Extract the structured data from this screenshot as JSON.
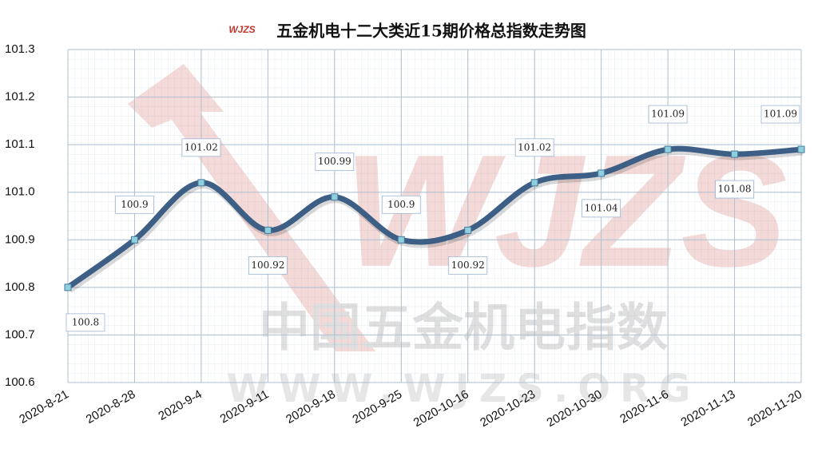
{
  "chart_data": {
    "type": "line",
    "title": "五金机电十二大类近15期价格总指数走势图",
    "logo": "WJZS",
    "watermark": [
      "中国五金机电指数",
      "WWW.WJZS.ORG"
    ],
    "categories": [
      "2020-8-21",
      "2020-8-28",
      "2020-9-4",
      "2020-9-11",
      "2020-9-18",
      "2020-9-25",
      "2020-10-16",
      "2020-10-23",
      "2020-10-30",
      "2020-11-6",
      "2020-11-13",
      "2020-11-20"
    ],
    "series": [
      {
        "name": "价格总指数",
        "color": "#3d5f86",
        "values": [
          100.8,
          100.9,
          101.02,
          100.92,
          100.99,
          100.9,
          100.92,
          101.02,
          101.04,
          101.09,
          101.08,
          101.09
        ]
      }
    ],
    "ylim": [
      100.6,
      101.3
    ],
    "yticks": [
      100.6,
      100.7,
      100.8,
      100.9,
      {
        "value": 101,
        "label": "101.0"
      },
      101.1,
      101.2,
      101.3
    ],
    "grid": true
  }
}
